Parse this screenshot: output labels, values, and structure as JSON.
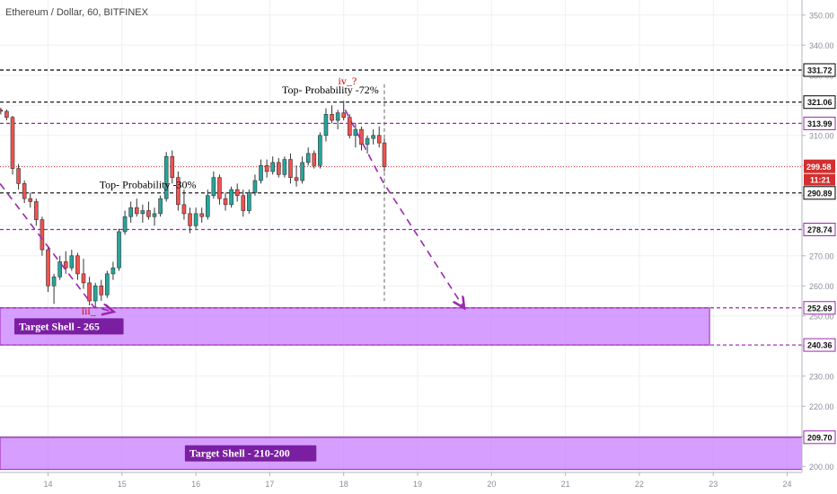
{
  "header": {
    "symbol_title": "Ethereum / Dollar, 60, BITFINEX"
  },
  "chart_data": {
    "type": "candlestick",
    "title": "Ethereum / Dollar, 60, BITFINEX",
    "y_axis": {
      "range": [
        198,
        355
      ],
      "ticks": [
        350,
        340,
        330,
        320,
        310,
        300,
        290,
        280,
        270,
        260,
        250,
        240,
        230,
        220,
        210,
        200
      ],
      "tick_labels": [
        "350.00",
        "340.00",
        "330.00",
        "320.00",
        "310.00",
        "300.00",
        "290.00",
        "280.00",
        "270.00",
        "260.00",
        "250.00",
        "240.00",
        "230.00",
        "220.00",
        "210.00",
        "200.00"
      ]
    },
    "x_axis": {
      "range": [
        13.35,
        24.2
      ],
      "ticks": [
        14,
        15,
        16,
        17,
        18,
        19,
        20,
        21,
        22,
        23,
        24
      ],
      "tick_labels": [
        "14",
        "15",
        "16",
        "17",
        "18",
        "19",
        "20",
        "21",
        "22",
        "23",
        "24"
      ]
    },
    "colors": {
      "bull": "#26a69a",
      "bear": "#ef5350",
      "candle_border": "#333333",
      "purple": "#9c27b0",
      "zone_fill": "#c77dff",
      "zone_label_bg": "#7b1fa2",
      "price_tag": "#d32f2f",
      "annotation_red": "#d50000",
      "text": "#333333"
    },
    "horizontal_levels": [
      {
        "price": 331.72,
        "label": "331.72",
        "style": "dashed",
        "color": "#000000"
      },
      {
        "price": 321.06,
        "label": "321.06",
        "style": "dashed",
        "color": "#000000"
      },
      {
        "price": 313.99,
        "label": "313.99",
        "style": "dashed",
        "color": "#9c27b0"
      },
      {
        "price": 290.89,
        "label": "290.89",
        "style": "dashed",
        "color": "#000000"
      },
      {
        "price": 278.74,
        "label": "278.74",
        "style": "dashed",
        "color": "#9c27b0"
      },
      {
        "price": 252.69,
        "label": "252.69",
        "style": "dashed",
        "color": "#9c27b0"
      },
      {
        "price": 240.36,
        "label": "240.36",
        "style": "dashed",
        "color": "#9c27b0"
      },
      {
        "price": 209.7,
        "label": "209.70",
        "style": "solid",
        "color": "#9c27b0"
      }
    ],
    "current_price": {
      "price": 299.58,
      "label": "299.58",
      "countdown": "11:21"
    },
    "zones": [
      {
        "x_start": 13.35,
        "x_end": 22.95,
        "y_top": 252.69,
        "y_bottom": 240.36,
        "label": "Target Shell - 265"
      },
      {
        "x_start": 13.35,
        "x_end": 24.2,
        "y_top": 209.7,
        "y_bottom": 199,
        "label": "Target Shell - 210-200"
      }
    ],
    "annotations": [
      {
        "text": "Top- Probability -72%",
        "x": 17.82,
        "y": 324,
        "color": "#000000"
      },
      {
        "text": "Top- Probability -30%",
        "x": 15.35,
        "y": 292.5,
        "color": "#000000"
      },
      {
        "text": "iv_?",
        "x": 18.05,
        "y": 327,
        "color": "#d50000"
      },
      {
        "text": "iii_",
        "x": 14.55,
        "y": 250.5,
        "color": "#d50000"
      }
    ],
    "projections": [
      {
        "points": [
          [
            13.35,
            294
          ],
          [
            14.62,
            253
          ],
          [
            14.87,
            251.5
          ]
        ],
        "arrow": true
      },
      {
        "points": [
          [
            18.02,
            318.5
          ],
          [
            18.52,
            295
          ],
          [
            19.62,
            253
          ]
        ],
        "arrow": true
      }
    ],
    "vertical_marker": {
      "x": 18.55,
      "y_top": 327,
      "y_bottom": 255
    },
    "candles": [
      {
        "x": 13.36,
        "o": 318.5,
        "h": 319.2,
        "l": 317.0,
        "c": 318.0
      },
      {
        "x": 13.44,
        "o": 318.0,
        "h": 318.6,
        "l": 315.0,
        "c": 316.0
      },
      {
        "x": 13.52,
        "o": 316.0,
        "h": 316.5,
        "l": 297.0,
        "c": 299.0
      },
      {
        "x": 13.6,
        "o": 299.0,
        "h": 300.5,
        "l": 292.0,
        "c": 294.0
      },
      {
        "x": 13.68,
        "o": 294.0,
        "h": 295.0,
        "l": 287.5,
        "c": 289.0
      },
      {
        "x": 13.76,
        "o": 289.0,
        "h": 291.0,
        "l": 286.0,
        "c": 288.0
      },
      {
        "x": 13.84,
        "o": 288.0,
        "h": 289.0,
        "l": 280.0,
        "c": 282.0
      },
      {
        "x": 13.92,
        "o": 282.0,
        "h": 283.0,
        "l": 270.0,
        "c": 272.0
      },
      {
        "x": 14.0,
        "o": 272.0,
        "h": 273.0,
        "l": 258.0,
        "c": 260.0
      },
      {
        "x": 14.08,
        "o": 260.0,
        "h": 264.0,
        "l": 254.0,
        "c": 263.0
      },
      {
        "x": 14.16,
        "o": 263.0,
        "h": 270.0,
        "l": 262.0,
        "c": 268.0
      },
      {
        "x": 14.24,
        "o": 268.0,
        "h": 271.5,
        "l": 264.0,
        "c": 266.0
      },
      {
        "x": 14.32,
        "o": 266.0,
        "h": 272.0,
        "l": 265.0,
        "c": 270.0
      },
      {
        "x": 14.4,
        "o": 270.0,
        "h": 271.0,
        "l": 262.0,
        "c": 264.0
      },
      {
        "x": 14.48,
        "o": 264.0,
        "h": 269.0,
        "l": 259.0,
        "c": 261.0
      },
      {
        "x": 14.56,
        "o": 261.0,
        "h": 263.0,
        "l": 253.5,
        "c": 255.0
      },
      {
        "x": 14.64,
        "o": 255.0,
        "h": 261.0,
        "l": 253.0,
        "c": 260.0
      },
      {
        "x": 14.72,
        "o": 260.0,
        "h": 262.0,
        "l": 255.0,
        "c": 257.0
      },
      {
        "x": 14.8,
        "o": 257.0,
        "h": 265.0,
        "l": 256.0,
        "c": 264.0
      },
      {
        "x": 14.88,
        "o": 264.0,
        "h": 268.0,
        "l": 262.0,
        "c": 266.0
      },
      {
        "x": 14.96,
        "o": 266.0,
        "h": 279.0,
        "l": 265.0,
        "c": 278.0
      },
      {
        "x": 15.04,
        "o": 278.0,
        "h": 285.0,
        "l": 277.0,
        "c": 283.0
      },
      {
        "x": 15.12,
        "o": 283.0,
        "h": 288.0,
        "l": 281.0,
        "c": 286.0
      },
      {
        "x": 15.2,
        "o": 286.0,
        "h": 289.0,
        "l": 283.0,
        "c": 284.0
      },
      {
        "x": 15.28,
        "o": 284.0,
        "h": 287.0,
        "l": 281.0,
        "c": 285.0
      },
      {
        "x": 15.36,
        "o": 285.0,
        "h": 288.0,
        "l": 282.0,
        "c": 283.0
      },
      {
        "x": 15.44,
        "o": 283.0,
        "h": 286.0,
        "l": 280.0,
        "c": 284.0
      },
      {
        "x": 15.52,
        "o": 284.0,
        "h": 290.0,
        "l": 283.0,
        "c": 289.0
      },
      {
        "x": 15.6,
        "o": 289.0,
        "h": 304.5,
        "l": 288.0,
        "c": 303.0
      },
      {
        "x": 15.68,
        "o": 303.0,
        "h": 305.0,
        "l": 294.0,
        "c": 296.0
      },
      {
        "x": 15.76,
        "o": 296.0,
        "h": 298.0,
        "l": 285.0,
        "c": 287.0
      },
      {
        "x": 15.84,
        "o": 287.0,
        "h": 292.0,
        "l": 282.0,
        "c": 284.0
      },
      {
        "x": 15.92,
        "o": 284.0,
        "h": 286.0,
        "l": 277.5,
        "c": 280.0
      },
      {
        "x": 16.0,
        "o": 280.0,
        "h": 286.0,
        "l": 279.0,
        "c": 284.0
      },
      {
        "x": 16.08,
        "o": 284.0,
        "h": 286.0,
        "l": 281.0,
        "c": 283.0
      },
      {
        "x": 16.16,
        "o": 283.0,
        "h": 292.0,
        "l": 282.0,
        "c": 290.0
      },
      {
        "x": 16.24,
        "o": 290.0,
        "h": 298.0,
        "l": 289.0,
        "c": 296.0
      },
      {
        "x": 16.32,
        "o": 296.0,
        "h": 297.0,
        "l": 287.0,
        "c": 289.0
      },
      {
        "x": 16.4,
        "o": 289.0,
        "h": 291.0,
        "l": 285.0,
        "c": 287.0
      },
      {
        "x": 16.48,
        "o": 287.0,
        "h": 293.0,
        "l": 286.0,
        "c": 292.0
      },
      {
        "x": 16.56,
        "o": 292.0,
        "h": 294.0,
        "l": 288.0,
        "c": 290.0
      },
      {
        "x": 16.64,
        "o": 290.0,
        "h": 292.0,
        "l": 283.0,
        "c": 285.0
      },
      {
        "x": 16.72,
        "o": 285.0,
        "h": 292.0,
        "l": 284.0,
        "c": 291.0
      },
      {
        "x": 16.8,
        "o": 291.0,
        "h": 297.0,
        "l": 290.0,
        "c": 295.0
      },
      {
        "x": 16.88,
        "o": 295.0,
        "h": 302.0,
        "l": 294.0,
        "c": 300.0
      },
      {
        "x": 16.96,
        "o": 300.0,
        "h": 302.0,
        "l": 296.0,
        "c": 298.0
      },
      {
        "x": 17.04,
        "o": 298.0,
        "h": 303.0,
        "l": 297.0,
        "c": 301.0
      },
      {
        "x": 17.12,
        "o": 301.0,
        "h": 302.5,
        "l": 296.0,
        "c": 297.0
      },
      {
        "x": 17.2,
        "o": 297.0,
        "h": 303.0,
        "l": 296.0,
        "c": 302.0
      },
      {
        "x": 17.28,
        "o": 302.0,
        "h": 304.0,
        "l": 294.0,
        "c": 296.0
      },
      {
        "x": 17.36,
        "o": 296.0,
        "h": 300.0,
        "l": 293.0,
        "c": 295.0
      },
      {
        "x": 17.44,
        "o": 295.0,
        "h": 303.0,
        "l": 294.0,
        "c": 301.0
      },
      {
        "x": 17.52,
        "o": 301.0,
        "h": 306.0,
        "l": 300.0,
        "c": 304.0
      },
      {
        "x": 17.6,
        "o": 304.0,
        "h": 305.0,
        "l": 299.0,
        "c": 300.0
      },
      {
        "x": 17.68,
        "o": 300.0,
        "h": 311.0,
        "l": 299.0,
        "c": 310.0
      },
      {
        "x": 17.76,
        "o": 310.0,
        "h": 319.0,
        "l": 308.0,
        "c": 317.0
      },
      {
        "x": 17.84,
        "o": 317.0,
        "h": 320.0,
        "l": 314.0,
        "c": 315.0
      },
      {
        "x": 17.92,
        "o": 315.0,
        "h": 318.5,
        "l": 312.0,
        "c": 317.5
      },
      {
        "x": 18.0,
        "o": 317.5,
        "h": 321.5,
        "l": 315.0,
        "c": 316.0
      },
      {
        "x": 18.08,
        "o": 316.0,
        "h": 317.0,
        "l": 309.0,
        "c": 310.0
      },
      {
        "x": 18.16,
        "o": 310.0,
        "h": 314.0,
        "l": 306.0,
        "c": 312.0
      },
      {
        "x": 18.24,
        "o": 312.0,
        "h": 313.0,
        "l": 305.0,
        "c": 307.0
      },
      {
        "x": 18.32,
        "o": 307.0,
        "h": 310.0,
        "l": 304.0,
        "c": 309.0
      },
      {
        "x": 18.4,
        "o": 309.0,
        "h": 312.0,
        "l": 307.0,
        "c": 310.0
      },
      {
        "x": 18.48,
        "o": 310.0,
        "h": 313.0,
        "l": 306.0,
        "c": 307.5
      },
      {
        "x": 18.55,
        "o": 307.5,
        "h": 309.0,
        "l": 298.0,
        "c": 299.58
      }
    ]
  }
}
